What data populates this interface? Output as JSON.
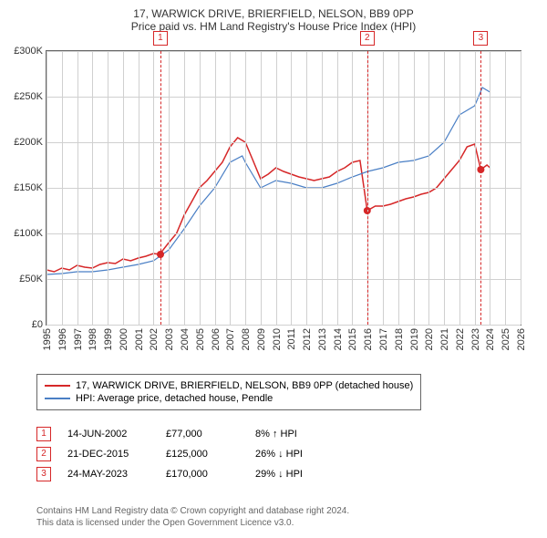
{
  "title": "17, WARWICK DRIVE, BRIERFIELD, NELSON, BB9 0PP",
  "subtitle": "Price paid vs. HM Land Registry's House Price Index (HPI)",
  "chart": {
    "type": "line",
    "x_range": [
      1995,
      2026
    ],
    "y_range": [
      0,
      300000
    ],
    "y_ticks": [
      0,
      50000,
      100000,
      150000,
      200000,
      250000,
      300000
    ],
    "y_tick_labels": [
      "£0",
      "£50K",
      "£100K",
      "£150K",
      "£200K",
      "£250K",
      "£300K"
    ],
    "x_ticks": [
      1995,
      1996,
      1997,
      1998,
      1999,
      2000,
      2001,
      2002,
      2003,
      2004,
      2005,
      2006,
      2007,
      2008,
      2009,
      2010,
      2011,
      2012,
      2013,
      2014,
      2015,
      2016,
      2017,
      2018,
      2019,
      2020,
      2021,
      2022,
      2023,
      2024,
      2025,
      2026
    ],
    "grid_color": "#d0d0d0",
    "border_color": "#666666",
    "background_color": "#ffffff",
    "series": [
      {
        "name": "property",
        "label": "17, WARWICK DRIVE, BRIERFIELD, NELSON, BB9 0PP (detached house)",
        "color": "#d62728",
        "width": 1.5,
        "data": [
          [
            1995,
            60000
          ],
          [
            1995.5,
            58000
          ],
          [
            1996,
            62000
          ],
          [
            1996.5,
            60000
          ],
          [
            1997,
            65000
          ],
          [
            1997.5,
            63000
          ],
          [
            1998,
            62000
          ],
          [
            1998.5,
            66000
          ],
          [
            1999,
            68000
          ],
          [
            1999.5,
            67000
          ],
          [
            2000,
            72000
          ],
          [
            2000.5,
            70000
          ],
          [
            2001,
            73000
          ],
          [
            2001.5,
            75000
          ],
          [
            2002,
            78000
          ],
          [
            2002.4,
            77000
          ],
          [
            2003,
            90000
          ],
          [
            2003.5,
            100000
          ],
          [
            2004,
            120000
          ],
          [
            2004.5,
            135000
          ],
          [
            2005,
            150000
          ],
          [
            2005.5,
            158000
          ],
          [
            2006,
            168000
          ],
          [
            2006.5,
            178000
          ],
          [
            2007,
            195000
          ],
          [
            2007.5,
            205000
          ],
          [
            2008,
            200000
          ],
          [
            2008.5,
            180000
          ],
          [
            2009,
            160000
          ],
          [
            2009.5,
            165000
          ],
          [
            2010,
            172000
          ],
          [
            2010.5,
            168000
          ],
          [
            2011,
            165000
          ],
          [
            2011.5,
            162000
          ],
          [
            2012,
            160000
          ],
          [
            2012.5,
            158000
          ],
          [
            2013,
            160000
          ],
          [
            2013.5,
            162000
          ],
          [
            2014,
            168000
          ],
          [
            2014.5,
            172000
          ],
          [
            2015,
            178000
          ],
          [
            2015.5,
            180000
          ],
          [
            2015.97,
            125000
          ],
          [
            2016.5,
            130000
          ],
          [
            2017,
            130000
          ],
          [
            2017.5,
            132000
          ],
          [
            2018,
            135000
          ],
          [
            2018.5,
            138000
          ],
          [
            2019,
            140000
          ],
          [
            2019.5,
            143000
          ],
          [
            2020,
            145000
          ],
          [
            2020.5,
            150000
          ],
          [
            2021,
            160000
          ],
          [
            2021.5,
            170000
          ],
          [
            2022,
            180000
          ],
          [
            2022.5,
            195000
          ],
          [
            2023,
            198000
          ],
          [
            2023.4,
            170000
          ],
          [
            2023.8,
            175000
          ],
          [
            2024,
            172000
          ]
        ]
      },
      {
        "name": "hpi",
        "label": "HPI: Average price, detached house, Pendle",
        "color": "#4a7fc5",
        "width": 1.2,
        "data": [
          [
            1995,
            55000
          ],
          [
            1996,
            56000
          ],
          [
            1997,
            58000
          ],
          [
            1998,
            58000
          ],
          [
            1999,
            60000
          ],
          [
            2000,
            63000
          ],
          [
            2001,
            66000
          ],
          [
            2002,
            70000
          ],
          [
            2003,
            82000
          ],
          [
            2004,
            105000
          ],
          [
            2005,
            130000
          ],
          [
            2006,
            150000
          ],
          [
            2007,
            178000
          ],
          [
            2007.8,
            185000
          ],
          [
            2008,
            178000
          ],
          [
            2009,
            150000
          ],
          [
            2010,
            158000
          ],
          [
            2011,
            155000
          ],
          [
            2012,
            150000
          ],
          [
            2013,
            150000
          ],
          [
            2014,
            155000
          ],
          [
            2015,
            162000
          ],
          [
            2016,
            168000
          ],
          [
            2017,
            172000
          ],
          [
            2018,
            178000
          ],
          [
            2019,
            180000
          ],
          [
            2020,
            185000
          ],
          [
            2021,
            200000
          ],
          [
            2022,
            230000
          ],
          [
            2023,
            240000
          ],
          [
            2023.5,
            260000
          ],
          [
            2024,
            255000
          ]
        ]
      }
    ],
    "markers": [
      {
        "n": "1",
        "x": 2002.45,
        "point_x": 2002.45,
        "point_y": 77000
      },
      {
        "n": "2",
        "x": 2015.97,
        "point_x": 2015.97,
        "point_y": 125000
      },
      {
        "n": "3",
        "x": 2023.4,
        "point_x": 2023.4,
        "point_y": 170000
      }
    ],
    "marker_color": "#d62728",
    "point_fill": "#d62728"
  },
  "legend": {
    "rows": [
      {
        "color": "#d62728",
        "label": "17, WARWICK DRIVE, BRIERFIELD, NELSON, BB9 0PP (detached house)"
      },
      {
        "color": "#4a7fc5",
        "label": "HPI: Average price, detached house, Pendle"
      }
    ]
  },
  "transactions": [
    {
      "n": "1",
      "date": "14-JUN-2002",
      "price": "£77,000",
      "diff": "8% ↑ HPI"
    },
    {
      "n": "2",
      "date": "21-DEC-2015",
      "price": "£125,000",
      "diff": "26% ↓ HPI"
    },
    {
      "n": "3",
      "date": "24-MAY-2023",
      "price": "£170,000",
      "diff": "29% ↓ HPI"
    }
  ],
  "footer": {
    "line1": "Contains HM Land Registry data © Crown copyright and database right 2024.",
    "line2": "This data is licensed under the Open Government Licence v3.0."
  }
}
